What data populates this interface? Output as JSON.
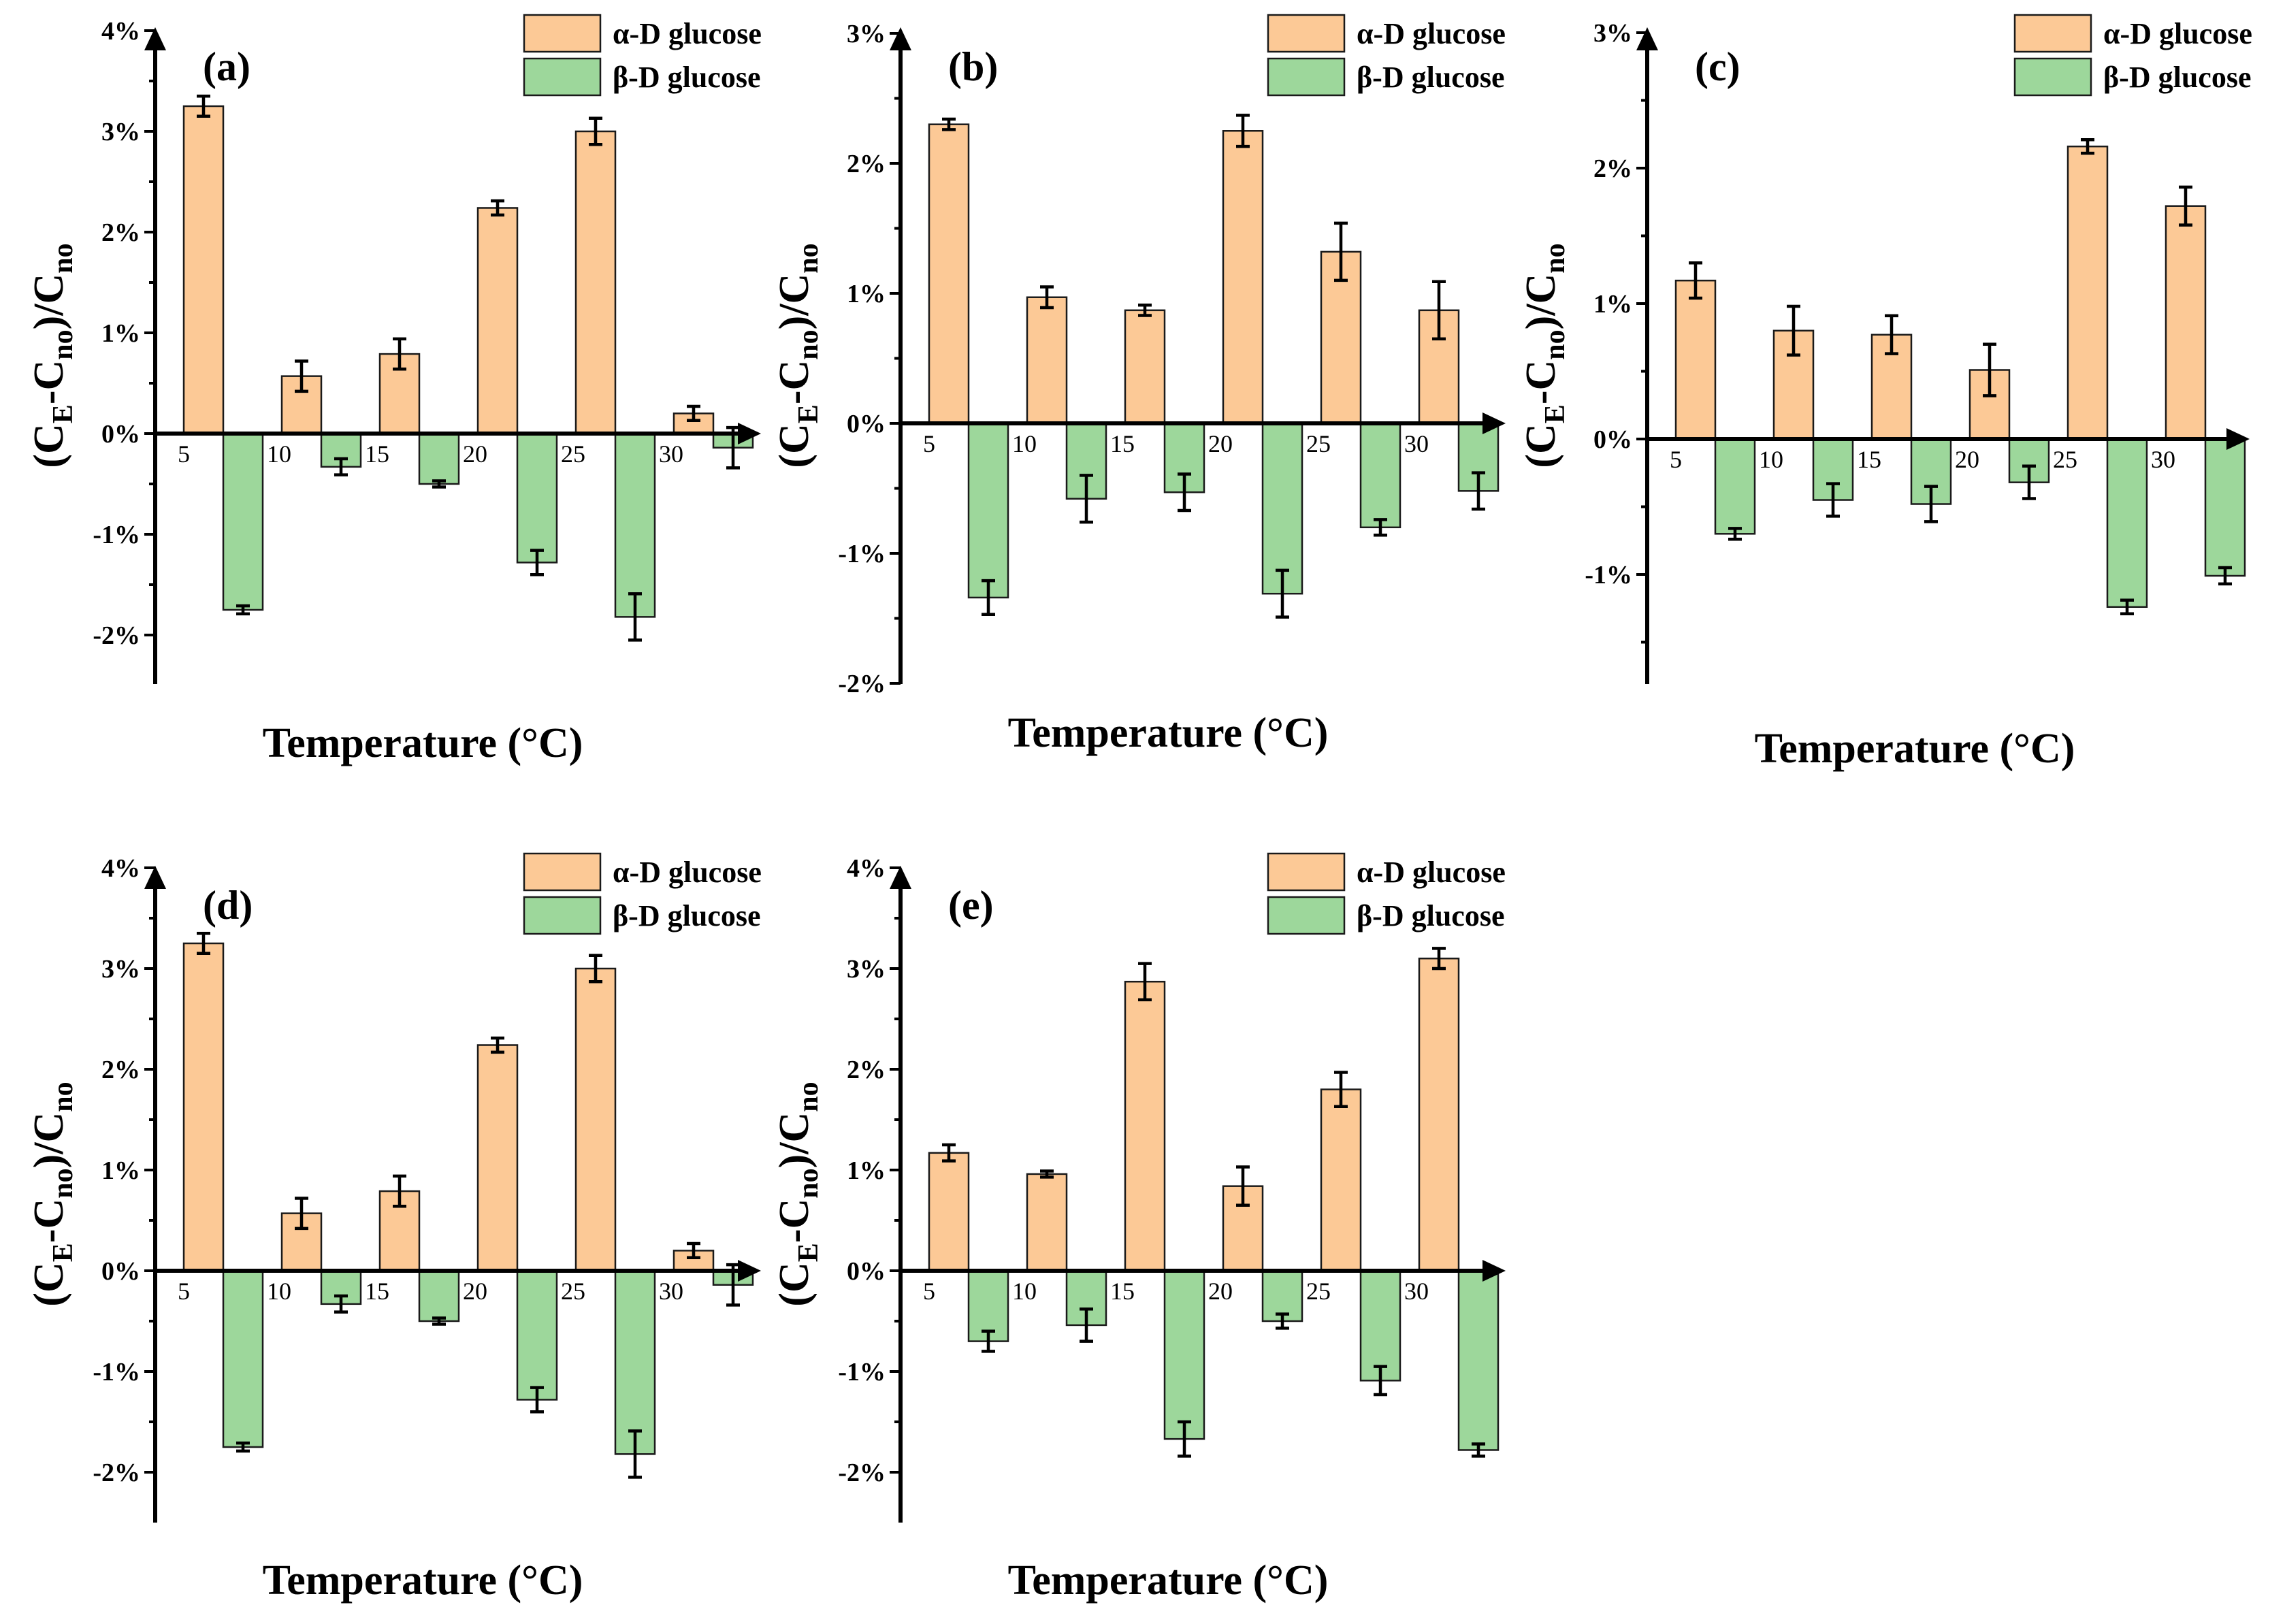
{
  "chart_data": [
    {
      "type": "bar",
      "panel_label": "(a)",
      "categories": [
        "5",
        "10",
        "15",
        "20",
        "25",
        "30"
      ],
      "series": [
        {
          "name": "α-D glucose",
          "values": [
            3.25,
            0.57,
            0.79,
            2.24,
            3.0,
            0.2
          ],
          "errors": [
            0.1,
            0.15,
            0.15,
            0.07,
            0.13,
            0.07
          ]
        },
        {
          "name": "β-D glucose",
          "values": [
            -1.75,
            -0.33,
            -0.5,
            -1.28,
            -1.82,
            -0.14
          ],
          "errors": [
            0.04,
            0.08,
            0.03,
            0.12,
            0.23,
            0.2
          ]
        }
      ],
      "y_ticks": [
        -2,
        -1,
        0,
        1,
        2,
        3,
        4
      ],
      "y_tick_labels": [
        "-2%",
        "-1%",
        "0%",
        "1%",
        "2%",
        "3%",
        "4%"
      ],
      "ylim": [
        -2.5,
        4
      ],
      "xlabel": "Temperature (°C)",
      "ylabel": {
        "open": "(C",
        "sub1": "E",
        "mid": "-C",
        "sub2": "no",
        "close": ")/C",
        "sub3": "no"
      },
      "colors": {
        "alpha": "#fcc996",
        "beta": "#9dd79b"
      },
      "legend_position": "top-right"
    },
    {
      "type": "bar",
      "panel_label": "(b)",
      "categories": [
        "5",
        "10",
        "15",
        "20",
        "25",
        "30"
      ],
      "series": [
        {
          "name": "α-D glucose",
          "values": [
            2.3,
            0.97,
            0.87,
            2.25,
            1.32,
            0.87
          ],
          "errors": [
            0.04,
            0.08,
            0.04,
            0.12,
            0.22,
            0.22
          ]
        },
        {
          "name": "β-D glucose",
          "values": [
            -1.34,
            -0.58,
            -0.53,
            -1.31,
            -0.8,
            -0.52
          ],
          "errors": [
            0.13,
            0.18,
            0.14,
            0.18,
            0.06,
            0.14
          ]
        }
      ],
      "y_ticks": [
        -2,
        -1,
        0,
        1,
        2,
        3
      ],
      "y_tick_labels": [
        "-2%",
        "-1%",
        "0%",
        "1%",
        "2%",
        "3%"
      ],
      "ylim": [
        -2,
        3
      ],
      "xlabel": "Temperature (°C)",
      "ylabel": {
        "open": "(C",
        "sub1": "E",
        "mid": "-C",
        "sub2": "no",
        "close": ")/C",
        "sub3": "no"
      },
      "colors": {
        "alpha": "#fcc996",
        "beta": "#9dd79b"
      },
      "legend_position": "top-right"
    },
    {
      "type": "bar",
      "panel_label": "(c)",
      "categories": [
        "5",
        "10",
        "15",
        "20",
        "25",
        "30"
      ],
      "series": [
        {
          "name": "α-D glucose",
          "values": [
            1.17,
            0.8,
            0.77,
            0.51,
            2.16,
            1.72
          ],
          "errors": [
            0.13,
            0.18,
            0.14,
            0.19,
            0.05,
            0.14
          ]
        },
        {
          "name": "β-D glucose",
          "values": [
            -0.7,
            -0.45,
            -0.48,
            -0.32,
            -1.24,
            -1.01
          ],
          "errors": [
            0.04,
            0.12,
            0.13,
            0.12,
            0.05,
            0.06
          ]
        }
      ],
      "y_ticks": [
        -1,
        0,
        1,
        2,
        3
      ],
      "y_tick_labels": [
        "-1%",
        "0%",
        "1%",
        "2%",
        "3%"
      ],
      "ylim": [
        -1.8,
        3
      ],
      "xlabel": "Temperature (°C)",
      "ylabel": {
        "open": "(C",
        "sub1": "E",
        "mid": "-C",
        "sub2": "no",
        "close": ")/C",
        "sub3": "no"
      },
      "colors": {
        "alpha": "#fcc996",
        "beta": "#9dd79b"
      },
      "legend_position": "top-right"
    },
    {
      "type": "bar",
      "panel_label": "(d)",
      "categories": [
        "5",
        "10",
        "15",
        "20",
        "25",
        "30"
      ],
      "series": [
        {
          "name": "α-D glucose",
          "values": [
            3.25,
            0.57,
            0.79,
            2.24,
            3.0,
            0.2
          ],
          "errors": [
            0.1,
            0.15,
            0.15,
            0.07,
            0.13,
            0.07
          ]
        },
        {
          "name": "β-D glucose",
          "values": [
            -1.75,
            -0.33,
            -0.5,
            -1.28,
            -1.82,
            -0.14
          ],
          "errors": [
            0.04,
            0.08,
            0.03,
            0.12,
            0.23,
            0.2
          ]
        }
      ],
      "y_ticks": [
        -2,
        -1,
        0,
        1,
        2,
        3,
        4
      ],
      "y_tick_labels": [
        "-2%",
        "-1%",
        "0%",
        "1%",
        "2%",
        "3%",
        "4%"
      ],
      "ylim": [
        -2.5,
        4
      ],
      "xlabel": "Temperature (°C)",
      "ylabel": {
        "open": "(C",
        "sub1": "E",
        "mid": "-C",
        "sub2": "no",
        "close": ")/C",
        "sub3": "no"
      },
      "colors": {
        "alpha": "#fcc996",
        "beta": "#9dd79b"
      },
      "legend_position": "top-right"
    },
    {
      "type": "bar",
      "panel_label": "(e)",
      "categories": [
        "5",
        "10",
        "15",
        "20",
        "25",
        "30"
      ],
      "series": [
        {
          "name": "α-D glucose",
          "values": [
            1.17,
            0.96,
            2.87,
            0.84,
            1.8,
            3.1
          ],
          "errors": [
            0.08,
            0.03,
            0.18,
            0.19,
            0.17,
            0.1
          ]
        },
        {
          "name": "β-D glucose",
          "values": [
            -0.7,
            -0.54,
            -1.67,
            -0.5,
            -1.09,
            -1.78
          ],
          "errors": [
            0.1,
            0.16,
            0.17,
            0.07,
            0.14,
            0.06
          ]
        }
      ],
      "y_ticks": [
        -2,
        -1,
        0,
        1,
        2,
        3,
        4
      ],
      "y_tick_labels": [
        "-2%",
        "-1%",
        "0%",
        "1%",
        "2%",
        "3%",
        "4%"
      ],
      "ylim": [
        -2.5,
        4
      ],
      "xlabel": "Temperature (°C)",
      "ylabel": {
        "open": "(C",
        "sub1": "E",
        "mid": "-C",
        "sub2": "no",
        "close": ")/C",
        "sub3": "no"
      },
      "colors": {
        "alpha": "#fcc996",
        "beta": "#9dd79b"
      },
      "legend_position": "top-right"
    }
  ]
}
